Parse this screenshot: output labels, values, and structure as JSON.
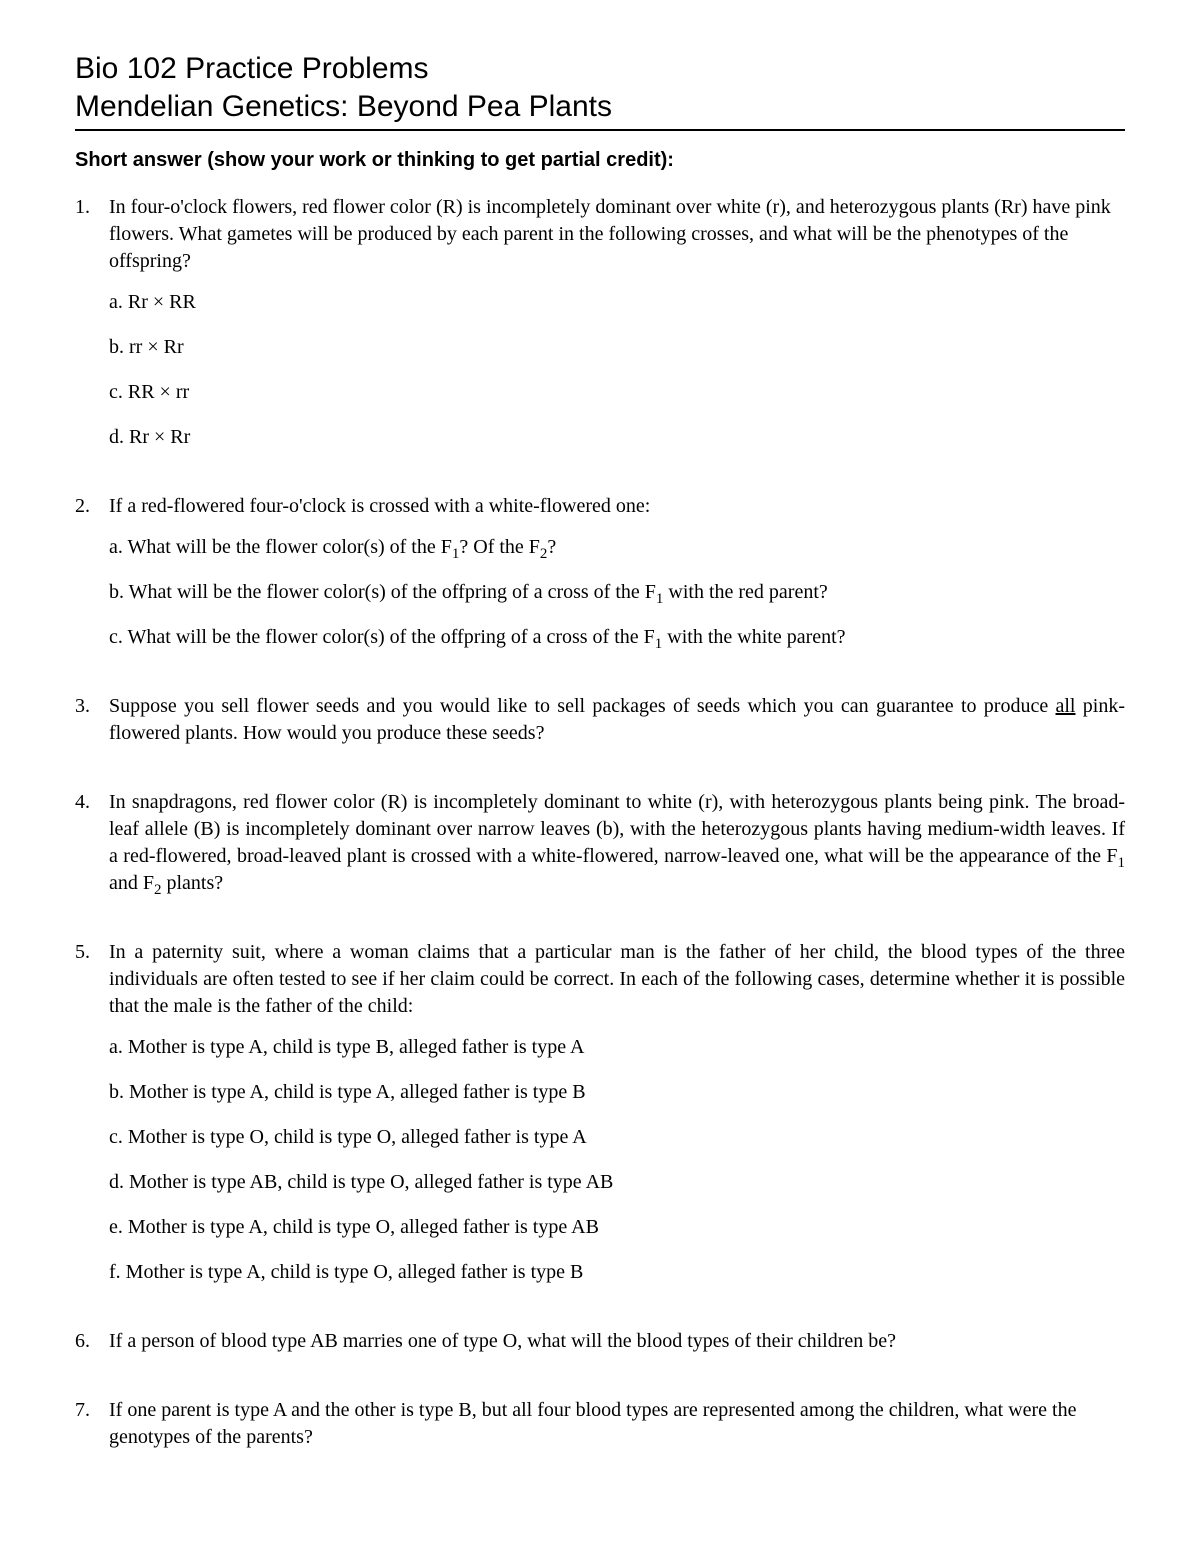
{
  "header": {
    "line1": "Bio 102 Practice Problems",
    "line2": "Mendelian Genetics: Beyond Pea Plants"
  },
  "section_title": "Short answer (show your work or thinking to get partial credit):",
  "problems": [
    {
      "text": "In four-o'clock flowers, red flower color (R) is incompletely dominant over white (r), and heterozygous plants (Rr) have pink flowers. What gametes will be produced by each parent in the following crosses, and what will be the phenotypes of the offspring?",
      "justify": false,
      "sub": [
        "a. Rr × RR",
        "b. rr × Rr",
        "c. RR × rr",
        "d. Rr × Rr"
      ]
    },
    {
      "text": "If a red-flowered four-o'clock is crossed with a white-flowered one:",
      "justify": false,
      "sub_html": [
        "a. What will be the flower color(s) of the F<sub>1</sub>? Of the F<sub>2</sub>?",
        "b. What will be the flower color(s) of the offpring of a cross of the F<sub>1</sub> with the red parent?",
        "c. What will be the flower color(s) of the offpring of a cross of the F<sub>1</sub> with the white parent?"
      ]
    },
    {
      "text_html": "Suppose you sell flower seeds and you would like to sell packages of seeds which you can guarantee to produce <span class=\"underline\">all</span> pink-flowered plants. How would you produce these seeds?",
      "justify": true
    },
    {
      "text_html": "In snapdragons, red flower color (R) is incompletely dominant to white (r), with heterozygous plants being pink. The broad-leaf allele (B) is incompletely dominant over narrow leaves (b), with the heterozygous plants having medium-width leaves. If a red-flowered, broad-leaved plant is crossed with a white-flowered, narrow-leaved one, what will be the appearance of the F<sub>1</sub> and F<sub>2</sub> plants?",
      "justify": true
    },
    {
      "text": "In a paternity suit, where a woman claims that a particular man is the father of her child, the blood types of the three individuals are often tested to see if her claim could be correct. In each of the following cases, determine whether it is possible that the male is the father of the child:",
      "justify": true,
      "sub": [
        "a. Mother is type A, child is type B, alleged father is type A",
        "b. Mother is type A, child is type A, alleged father is type B",
        "c. Mother is type O, child is type O, alleged father is type A",
        "d. Mother is type AB, child is type O, alleged father is type AB",
        "e. Mother is type A, child is type O, alleged father is type AB",
        "f. Mother is type A, child is type O, alleged father is type B"
      ]
    },
    {
      "text": "If a person of blood type AB marries one of type O, what will the blood types of their children be?",
      "justify": false
    },
    {
      "text": "If one parent is type A and the other is type B, but all four blood types are represented among the children, what were the genotypes of the parents?",
      "justify": false
    }
  ]
}
